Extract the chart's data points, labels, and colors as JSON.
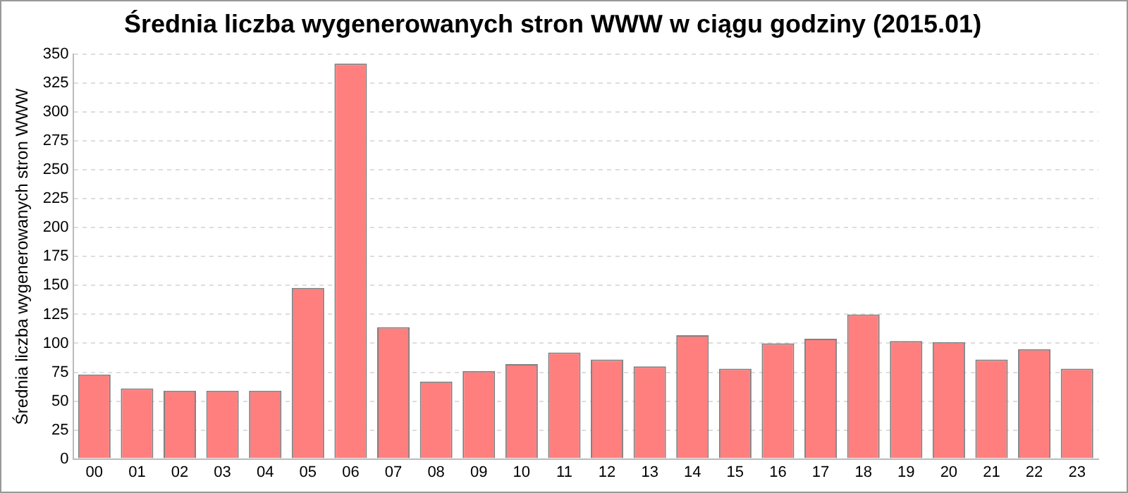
{
  "chart_data": {
    "type": "bar",
    "title": "Średnia liczba wygenerowanych stron WWW w ciągu godziny (2015.01)",
    "ylabel": "Średnia liczba wygenerowanych stron WWW",
    "categories": [
      "00",
      "01",
      "02",
      "03",
      "04",
      "05",
      "06",
      "07",
      "08",
      "09",
      "10",
      "11",
      "12",
      "13",
      "14",
      "15",
      "16",
      "17",
      "18",
      "19",
      "20",
      "21",
      "22",
      "23"
    ],
    "values": [
      73,
      61,
      59,
      59,
      59,
      148,
      342,
      114,
      67,
      76,
      82,
      92,
      86,
      80,
      107,
      78,
      100,
      104,
      125,
      102,
      101,
      86,
      95,
      78
    ],
    "color": "#ff7f7f",
    "ylim": [
      0,
      350
    ],
    "yticks": [
      0,
      25,
      50,
      75,
      100,
      125,
      150,
      175,
      200,
      225,
      250,
      275,
      300,
      325,
      350
    ],
    "grid": "y"
  }
}
